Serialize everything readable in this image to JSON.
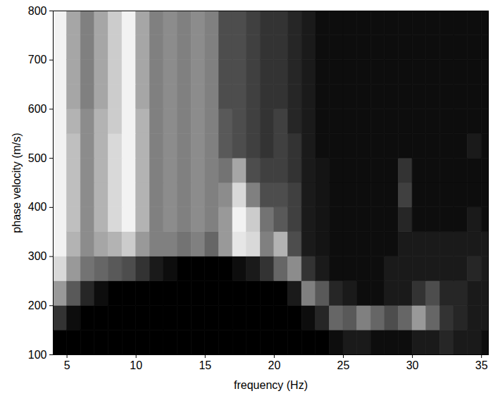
{
  "chart_data": {
    "type": "heatmap",
    "x_label": "frequency (Hz)",
    "y_label": "phase velocity (m/s)",
    "xlim": [
      4,
      35.5
    ],
    "ylim": [
      100,
      800
    ],
    "xticks": [
      5,
      10,
      15,
      20,
      25,
      30,
      35
    ],
    "yticks": [
      100,
      200,
      300,
      400,
      500,
      600,
      700,
      800
    ],
    "color": "grayscale",
    "zlim": [
      0,
      1
    ],
    "x_bins": [
      4,
      5,
      6,
      7,
      8,
      9,
      10,
      11,
      12,
      13,
      14,
      15,
      16,
      17,
      18,
      19,
      20,
      21,
      22,
      23,
      24,
      25,
      26,
      27,
      28,
      29,
      30,
      31,
      32,
      33,
      34,
      35,
      35.5
    ],
    "y_bins": [
      100,
      150,
      200,
      250,
      300,
      350,
      400,
      450,
      500,
      550,
      600,
      650,
      700,
      750,
      800
    ],
    "cells": [
      [
        0,
        0,
        0,
        0,
        0,
        0,
        0,
        0,
        0,
        0,
        0,
        0,
        0,
        0,
        0,
        0,
        0,
        0,
        0,
        0,
        0.05,
        0.1,
        0.1,
        0.05,
        0.05,
        0.05,
        0.1,
        0.1,
        0.15,
        0.1,
        0.1,
        0.05
      ],
      [
        0.2,
        0.05,
        0,
        0,
        0,
        0,
        0,
        0,
        0,
        0,
        0,
        0,
        0,
        0,
        0,
        0,
        0,
        0,
        0.05,
        0.15,
        0.4,
        0.35,
        0.5,
        0.4,
        0.3,
        0.4,
        0.6,
        0.4,
        0.2,
        0.15,
        0.1,
        0.1
      ],
      [
        0.6,
        0.35,
        0.15,
        0.05,
        0,
        0,
        0,
        0,
        0,
        0,
        0,
        0,
        0,
        0,
        0,
        0,
        0,
        0.1,
        0.5,
        0.35,
        0.15,
        0.1,
        0.05,
        0.05,
        0.1,
        0.1,
        0.2,
        0.3,
        0.15,
        0.15,
        0.1,
        0.1
      ],
      [
        0.85,
        0.6,
        0.45,
        0.4,
        0.35,
        0.3,
        0.2,
        0.1,
        0.05,
        0,
        0,
        0,
        0,
        0.05,
        0.1,
        0.2,
        0.4,
        0.55,
        0.2,
        0.1,
        0.05,
        0.05,
        0.05,
        0.05,
        0.1,
        0.1,
        0.1,
        0.1,
        0.1,
        0.1,
        0.15,
        0.1
      ],
      [
        0.95,
        0.7,
        0.55,
        0.65,
        0.7,
        0.8,
        0.6,
        0.5,
        0.5,
        0.45,
        0.5,
        0.4,
        0.6,
        0.9,
        0.85,
        0.5,
        0.7,
        0.3,
        0.1,
        0.08,
        0.05,
        0.05,
        0.05,
        0.05,
        0.05,
        0.1,
        0.1,
        0.1,
        0.1,
        0.1,
        0.1,
        0.1
      ],
      [
        0.95,
        0.75,
        0.55,
        0.7,
        0.85,
        0.95,
        0.7,
        0.5,
        0.55,
        0.5,
        0.55,
        0.5,
        0.6,
        0.95,
        0.8,
        0.45,
        0.35,
        0.25,
        0.1,
        0.08,
        0.05,
        0.05,
        0.05,
        0.05,
        0.05,
        0.15,
        0.05,
        0.05,
        0.05,
        0.05,
        0.1,
        0.05
      ],
      [
        0.95,
        0.75,
        0.55,
        0.7,
        0.85,
        0.95,
        0.7,
        0.5,
        0.55,
        0.5,
        0.55,
        0.5,
        0.55,
        0.85,
        0.5,
        0.3,
        0.3,
        0.25,
        0.1,
        0.08,
        0.05,
        0.05,
        0.05,
        0.05,
        0.05,
        0.25,
        0.05,
        0.05,
        0.05,
        0.05,
        0.05,
        0.05
      ],
      [
        0.95,
        0.75,
        0.55,
        0.7,
        0.85,
        0.95,
        0.7,
        0.5,
        0.55,
        0.5,
        0.55,
        0.5,
        0.45,
        0.65,
        0.3,
        0.25,
        0.25,
        0.2,
        0.1,
        0.08,
        0.05,
        0.05,
        0.05,
        0.05,
        0.05,
        0.2,
        0.05,
        0.05,
        0.05,
        0.05,
        0.05,
        0.05
      ],
      [
        0.95,
        0.75,
        0.55,
        0.7,
        0.85,
        0.95,
        0.7,
        0.5,
        0.55,
        0.5,
        0.55,
        0.5,
        0.35,
        0.3,
        0.25,
        0.2,
        0.25,
        0.2,
        0.1,
        0.05,
        0.05,
        0.05,
        0.05,
        0.05,
        0.05,
        0.05,
        0.05,
        0.05,
        0.05,
        0.05,
        0.1,
        0.05
      ],
      [
        0.95,
        0.7,
        0.55,
        0.7,
        0.8,
        0.95,
        0.7,
        0.5,
        0.55,
        0.5,
        0.55,
        0.5,
        0.35,
        0.3,
        0.25,
        0.2,
        0.25,
        0.15,
        0.1,
        0.05,
        0.05,
        0.05,
        0.05,
        0.05,
        0.05,
        0.05,
        0.05,
        0.05,
        0.05,
        0.05,
        0.05,
        0.05
      ],
      [
        0.95,
        0.65,
        0.5,
        0.65,
        0.8,
        0.95,
        0.65,
        0.5,
        0.55,
        0.5,
        0.55,
        0.5,
        0.3,
        0.3,
        0.25,
        0.2,
        0.2,
        0.15,
        0.1,
        0.05,
        0.05,
        0.05,
        0.05,
        0.05,
        0.05,
        0.05,
        0.05,
        0.05,
        0.05,
        0.05,
        0.05,
        0.05
      ],
      [
        0.95,
        0.65,
        0.5,
        0.65,
        0.8,
        0.95,
        0.65,
        0.5,
        0.55,
        0.5,
        0.55,
        0.5,
        0.3,
        0.3,
        0.25,
        0.2,
        0.2,
        0.15,
        0.1,
        0.05,
        0.05,
        0.05,
        0.05,
        0.05,
        0.05,
        0.05,
        0.05,
        0.05,
        0.05,
        0.05,
        0.05,
        0.05
      ],
      [
        0.95,
        0.65,
        0.5,
        0.65,
        0.8,
        0.95,
        0.65,
        0.5,
        0.55,
        0.5,
        0.55,
        0.5,
        0.3,
        0.3,
        0.25,
        0.2,
        0.2,
        0.15,
        0.1,
        0.05,
        0.05,
        0.05,
        0.05,
        0.05,
        0.05,
        0.05,
        0.05,
        0.05,
        0.05,
        0.05,
        0.05,
        0.05
      ],
      [
        0.95,
        0.65,
        0.5,
        0.65,
        0.8,
        0.95,
        0.65,
        0.5,
        0.55,
        0.5,
        0.55,
        0.5,
        0.3,
        0.3,
        0.25,
        0.2,
        0.2,
        0.15,
        0.1,
        0.05,
        0.05,
        0.05,
        0.05,
        0.05,
        0.05,
        0.05,
        0.05,
        0.05,
        0.05,
        0.05,
        0.05,
        0.05
      ]
    ]
  }
}
